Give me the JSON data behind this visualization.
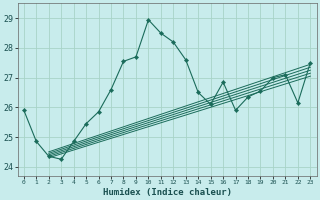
{
  "xlabel": "Humidex (Indice chaleur)",
  "xlim": [
    -0.5,
    23.5
  ],
  "ylim": [
    23.7,
    29.5
  ],
  "xticks": [
    0,
    1,
    2,
    3,
    4,
    5,
    6,
    7,
    8,
    9,
    10,
    11,
    12,
    13,
    14,
    15,
    16,
    17,
    18,
    19,
    20,
    21,
    22,
    23
  ],
  "yticks": [
    24,
    25,
    26,
    27,
    28,
    29
  ],
  "bg_color": "#c8ecec",
  "grid_color": "#a8d4c8",
  "line_color": "#1a6b5a",
  "main_series_x": [
    0,
    1,
    2,
    3,
    4,
    5,
    6,
    7,
    8,
    9,
    10,
    11,
    12,
    13,
    14,
    15,
    16,
    17,
    18,
    19,
    20,
    21,
    22,
    23
  ],
  "main_series_y": [
    25.9,
    24.85,
    24.35,
    24.25,
    24.85,
    25.45,
    25.85,
    26.6,
    27.55,
    27.7,
    28.95,
    28.5,
    28.2,
    27.6,
    26.5,
    26.1,
    26.85,
    25.9,
    26.35,
    26.55,
    27.0,
    27.1,
    26.15,
    27.5
  ],
  "trend_lines": [
    {
      "x": [
        2,
        23
      ],
      "y": [
        24.3,
        27.05
      ]
    },
    {
      "x": [
        2,
        23
      ],
      "y": [
        24.35,
        27.15
      ]
    },
    {
      "x": [
        2,
        23
      ],
      "y": [
        24.4,
        27.25
      ]
    },
    {
      "x": [
        2,
        23
      ],
      "y": [
        24.45,
        27.35
      ]
    },
    {
      "x": [
        2,
        23
      ],
      "y": [
        24.5,
        27.45
      ]
    }
  ]
}
